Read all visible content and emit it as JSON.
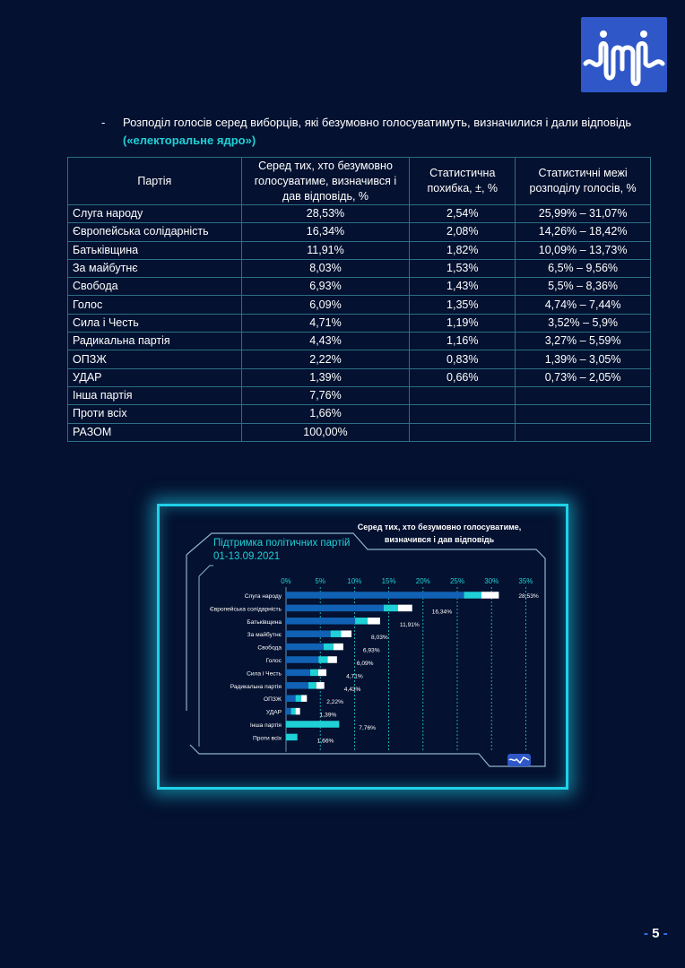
{
  "intro": {
    "dash": "-",
    "text": "Розподіл голосів серед виборців, які безумовно голосуватимуть, визначилися і дали відповідь ",
    "highlight": "(«електоральне ядро»)"
  },
  "table": {
    "headers": [
      "Партія",
      "Серед тих, хто безумовно голосуватиме, визначився і дав відповідь, %",
      "Статистична похибка, ±, %",
      "Статистичні межі розподілу голосів, %"
    ],
    "rows": [
      [
        "Слуга народу",
        "28,53%",
        "2,54%",
        "25,99% – 31,07%"
      ],
      [
        "Європейська солідарність",
        "16,34%",
        "2,08%",
        "14,26% – 18,42%"
      ],
      [
        "Батьківщина",
        "11,91%",
        "1,82%",
        "10,09% – 13,73%"
      ],
      [
        "За майбутнє",
        "8,03%",
        "1,53%",
        "6,5% – 9,56%"
      ],
      [
        "Свобода",
        "6,93%",
        "1,43%",
        "5,5% – 8,36%"
      ],
      [
        "Голос",
        "6,09%",
        "1,35%",
        "4,74% – 7,44%"
      ],
      [
        "Сила і Честь",
        "4,71%",
        "1,19%",
        "3,52% – 5,9%"
      ],
      [
        "Радикальна партія",
        "4,43%",
        "1,16%",
        "3,27% – 5,59%"
      ],
      [
        "ОПЗЖ",
        "2,22%",
        "0,83%",
        "1,39% – 3,05%"
      ],
      [
        "УДАР",
        "1,39%",
        "0,66%",
        "0,73% – 2,05%"
      ],
      [
        "Інша партія",
        "7,76%",
        "",
        ""
      ],
      [
        "Проти всіх",
        "1,66%",
        "",
        ""
      ],
      [
        "РАЗОМ",
        "100,00%",
        "",
        ""
      ]
    ]
  },
  "chart_data": {
    "type": "bar",
    "orientation": "horizontal",
    "title": "Підтримка політичних партій",
    "subtitle": "01-13.09.2021",
    "legend_title": "Серед тих, хто безумовно голосуватиме, визначився і дав відповідь",
    "x_ticks": [
      "0%",
      "5%",
      "10%",
      "15%",
      "20%",
      "25%",
      "30%",
      "35%"
    ],
    "xlim": [
      0,
      35
    ],
    "grid": true,
    "categories": [
      "Слуга народу",
      "Європейська солідарність",
      "Батьківщина",
      "За майбутнє",
      "Свобода",
      "Голос",
      "Сила і Честь",
      "Радикальна партія",
      "ОПЗЖ",
      "УДАР",
      "Інша партія",
      "Проти всіх"
    ],
    "values": [
      28.53,
      16.34,
      11.91,
      8.03,
      6.93,
      6.09,
      4.71,
      4.43,
      2.22,
      1.39,
      7.76,
      1.66
    ],
    "errors": [
      2.54,
      2.08,
      1.82,
      1.53,
      1.43,
      1.35,
      1.19,
      1.16,
      0.83,
      0.66,
      0,
      0
    ],
    "value_labels": [
      "28,53%",
      "16,34%",
      "11,91%",
      "8,03%",
      "6,93%",
      "6,09%",
      "4,71%",
      "4,43%",
      "2,22%",
      "1,39%",
      "7,76%",
      "1,66%"
    ],
    "colors": {
      "base": "#1162b4",
      "lower": "#1fd1d6",
      "upper": "#ffffff",
      "solid": "#1fd1d6",
      "grid": "#1fd1d6",
      "frame": "#1fd1e8",
      "text": "#ffffff",
      "title": "#1fd1d6"
    }
  },
  "page": {
    "number_dash_left": "- ",
    "number": "5",
    "number_dash_right": " -"
  }
}
